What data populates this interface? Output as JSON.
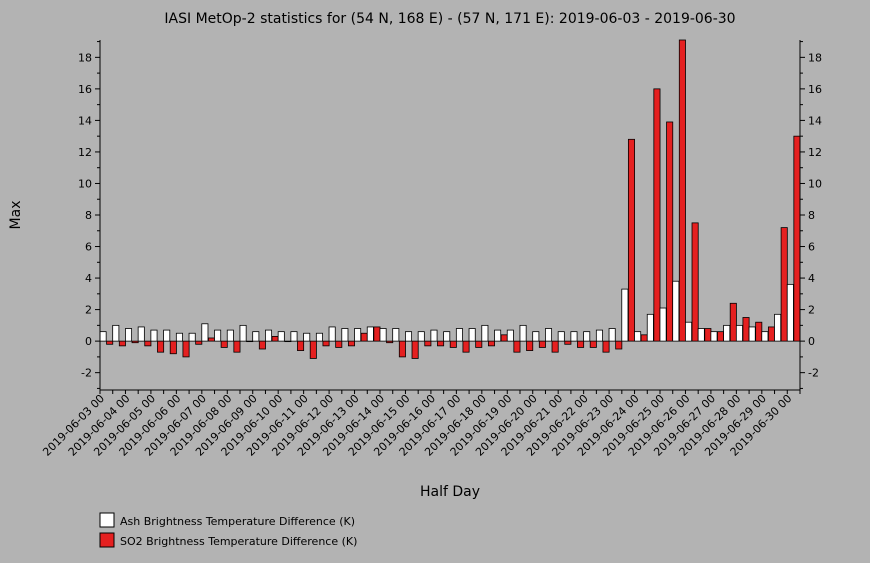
{
  "chart_data": {
    "type": "bar",
    "title": "IASI MetOp-2 statistics for (54 N, 168 E) - (57 N, 171 E): 2019-06-03 - 2019-06-30",
    "xlabel": "Half Day",
    "ylabel": "Max",
    "ylim": [
      -3.1,
      19.1
    ],
    "yticks": [
      -2,
      0,
      2,
      4,
      6,
      8,
      10,
      12,
      14,
      16,
      18
    ],
    "x_tick_labels": [
      "2019-06-03 00",
      "2019-06-04 00",
      "2019-06-05 00",
      "2019-06-06 00",
      "2019-06-07 00",
      "2019-06-08 00",
      "2019-06-09 00",
      "2019-06-10 00",
      "2019-06-11 00",
      "2019-06-12 00",
      "2019-06-13 00",
      "2019-06-14 00",
      "2019-06-15 00",
      "2019-06-16 00",
      "2019-06-17 00",
      "2019-06-18 00",
      "2019-06-19 00",
      "2019-06-20 00",
      "2019-06-21 00",
      "2019-06-22 00",
      "2019-06-23 00",
      "2019-06-24 00",
      "2019-06-25 00",
      "2019-06-26 00",
      "2019-06-27 00",
      "2019-06-28 00",
      "2019-06-29 00",
      "2019-06-30 00"
    ],
    "grid": false,
    "legend_position": "bottom-left",
    "series": [
      {
        "name": "Ash Brightness Temperature Difference (K)",
        "color": "#ffffff",
        "values": [
          0.6,
          1.0,
          0.8,
          0.9,
          0.7,
          0.7,
          0.5,
          0.5,
          1.1,
          0.7,
          0.7,
          1.0,
          0.6,
          0.7,
          0.6,
          0.6,
          0.5,
          0.5,
          0.9,
          0.8,
          0.8,
          0.9,
          0.8,
          0.8,
          0.6,
          0.6,
          0.7,
          0.6,
          0.8,
          0.8,
          1.0,
          0.7,
          0.7,
          1.0,
          0.6,
          0.8,
          0.6,
          0.6,
          0.6,
          0.7,
          0.8,
          3.3,
          0.6,
          1.7,
          2.1,
          3.8,
          1.2,
          0.8,
          0.6,
          1.0,
          1.0,
          0.9,
          0.6,
          1.7,
          3.6
        ]
      },
      {
        "name": "SO2 Brightness Temperature Difference (K)",
        "color": "#e52020",
        "values": [
          -0.2,
          -0.3,
          -0.1,
          -0.3,
          -0.7,
          -0.8,
          -1.0,
          -0.2,
          0.2,
          -0.4,
          -0.7,
          0.0,
          -0.5,
          0.3,
          0.0,
          -0.6,
          -1.1,
          -0.3,
          -0.4,
          -0.3,
          0.5,
          0.9,
          -0.1,
          -1.0,
          -1.1,
          -0.3,
          -0.3,
          -0.4,
          -0.7,
          -0.4,
          -0.3,
          0.4,
          -0.7,
          -0.6,
          -0.4,
          -0.7,
          -0.2,
          -0.4,
          -0.4,
          -0.7,
          -0.5,
          12.8,
          0.4,
          16.0,
          13.9,
          19.1,
          7.5,
          0.8,
          0.6,
          2.4,
          1.5,
          1.2,
          0.9,
          7.2,
          13.0
        ]
      }
    ]
  }
}
